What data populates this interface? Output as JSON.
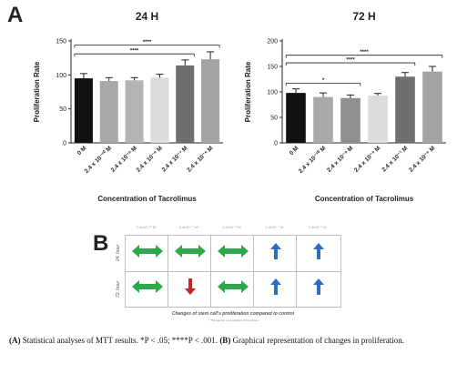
{
  "panel_a_letter": "A",
  "panel_b_letter": "B",
  "chart_data": [
    {
      "type": "bar",
      "title": "24 H",
      "xlabel": "Concentration of Tacrolimus",
      "ylabel": "Proliferation Rate",
      "ylim": [
        0,
        150
      ],
      "yticks": [
        "0",
        "50",
        "100",
        "150"
      ],
      "categories": [
        "0 M",
        "2.4 x 10⁻¹⁰ M",
        "2.4 x 10⁻⁹ M",
        "2.4 x 10⁻⁸ M",
        "2.4 x 10⁻⁷ M",
        "2.4 x 10⁻⁶ M"
      ],
      "values": [
        95,
        91,
        92,
        96,
        114,
        123
      ],
      "errors": [
        7,
        5,
        4,
        5,
        8,
        11
      ],
      "bar_colors": [
        "#111111",
        "#a9a9a9",
        "#b3b3b3",
        "#dcdcdc",
        "#6f6f6f",
        "#a3a3a3"
      ],
      "significance": [
        {
          "from": 0,
          "to": 4,
          "label": "****",
          "y": 131
        },
        {
          "from": 0,
          "to": 5,
          "label": "****",
          "y": 144
        }
      ],
      "grid": false
    },
    {
      "type": "bar",
      "title": "72 H",
      "xlabel": "Concentration of Tacrolimus",
      "ylabel": "Proliferation Rate",
      "ylim": [
        0,
        200
      ],
      "yticks": [
        "0",
        "50",
        "100",
        "150",
        "200"
      ],
      "categories": [
        "0 M",
        "2.4 x 10⁻¹⁰ M",
        "2.4 x 10⁻⁹ M",
        "2.4 x 10⁻⁸ M",
        "2.4 x 10⁻⁷ M",
        "2.4 x 10⁻⁶ M"
      ],
      "values": [
        98,
        90,
        88,
        93,
        130,
        140
      ],
      "errors": [
        8,
        8,
        6,
        4,
        8,
        10
      ],
      "bar_colors": [
        "#111111",
        "#a9a9a9",
        "#8f8f8f",
        "#dcdcdc",
        "#6f6f6f",
        "#a3a3a3"
      ],
      "significance": [
        {
          "from": 0,
          "to": 2,
          "label": "*",
          "y": 117
        },
        {
          "from": 0,
          "to": 4,
          "label": "****",
          "y": 157
        },
        {
          "from": 0,
          "to": 5,
          "label": "****",
          "y": 172
        }
      ],
      "grid": false
    }
  ],
  "panel_b": {
    "column_headers": [
      "2.4x10⁻¹⁰ M",
      "2.4x10⁻⁹ M*",
      "2.4x10⁻⁸ M",
      "2.4x10⁻⁷ M",
      "2.4x10⁻⁶ M"
    ],
    "rows": [
      {
        "label": "24. hour",
        "cells": [
          "no-change",
          "no-change",
          "no-change",
          "increase",
          "increase"
        ]
      },
      {
        "label": "72. hour",
        "cells": [
          "no-change",
          "decrease",
          "no-change",
          "increase",
          "increase"
        ]
      }
    ],
    "footer": "Changes of stem cell's proliferation compared to control",
    "note": "*: Therapeutic concentration of tacrolimus",
    "colors": {
      "no_change": "#2ea84a",
      "increase": "#2f6dc2",
      "decrease": "#c2282a"
    }
  },
  "caption": {
    "label_a": "(A)",
    "text_a": " Statistical analyses of MTT results. *P < .05; ****P < .001. ",
    "label_b": "(B)",
    "text_b": " Graphical representation of changes in proliferation."
  }
}
